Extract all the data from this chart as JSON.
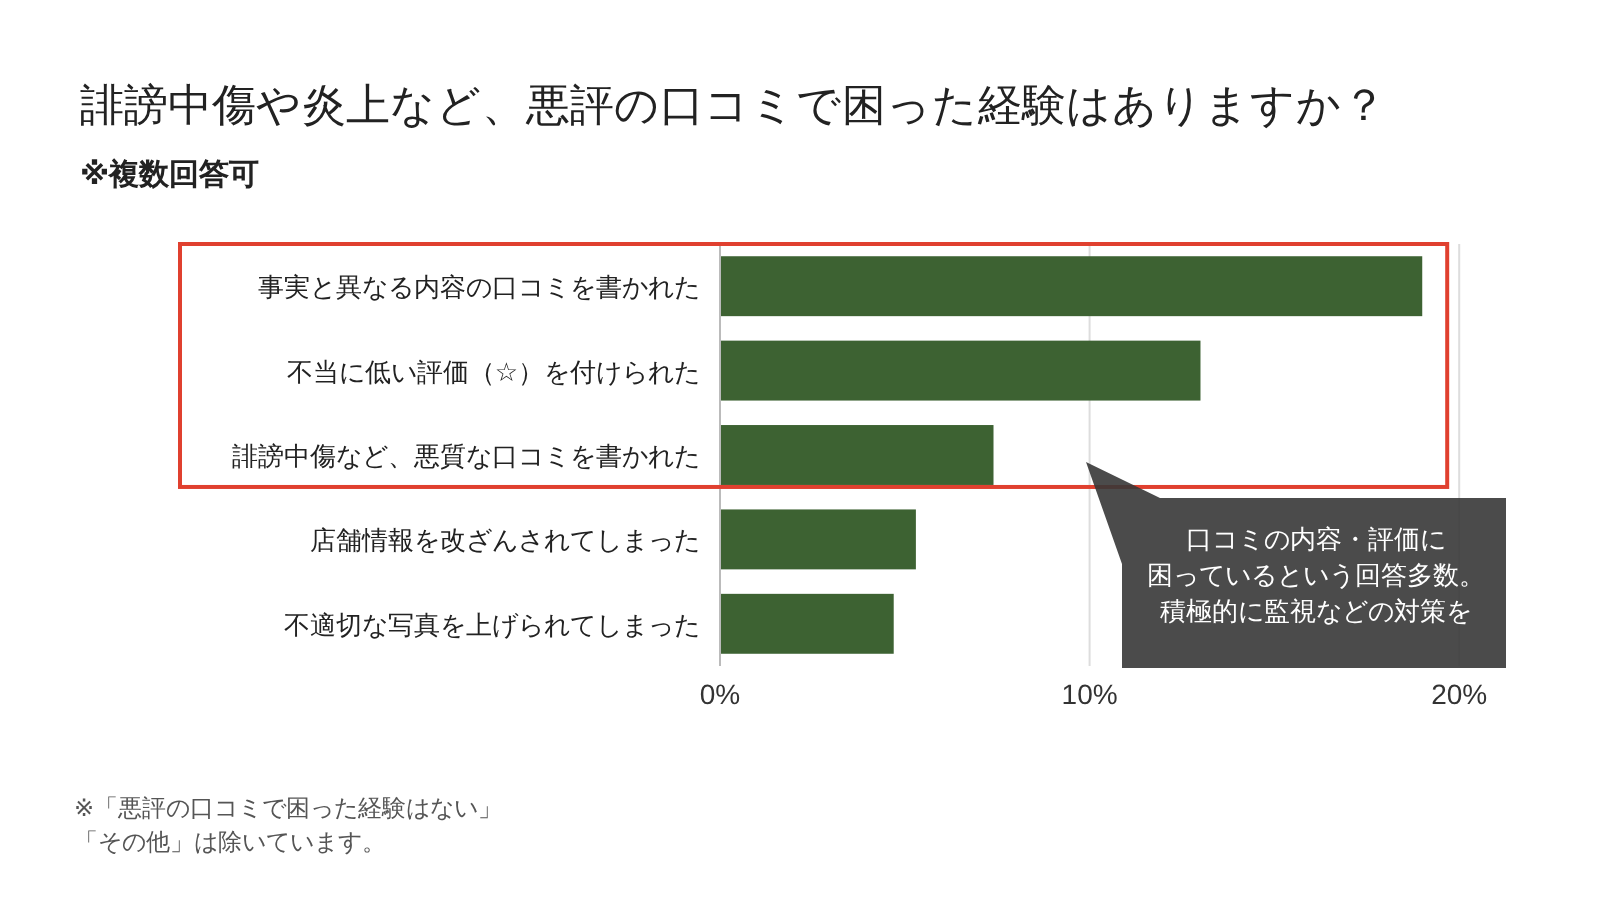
{
  "chart_data": {
    "type": "bar",
    "orientation": "horizontal",
    "title": "誹謗中傷や炎上など、悪評の口コミで困った経験はありますか？",
    "subtitle": "※複数回答可",
    "categories": [
      "事実と異なる内容の口コミを書かれた",
      "不当に低い評価（☆）を付けられた",
      "誹謗中傷など、悪質な口コミを書かれた",
      "店舗情報を改ざんされてしまった",
      "不適切な写真を上げられてしまった"
    ],
    "values": [
      19.0,
      13.0,
      7.4,
      5.3,
      4.7
    ],
    "color": "#3d6232",
    "xlim": [
      0,
      20
    ],
    "xticks": [
      {
        "value": 0,
        "label": "0%"
      },
      {
        "value": 10,
        "label": "10%"
      },
      {
        "value": 20,
        "label": "20%"
      }
    ],
    "grid": "x",
    "annotations": [
      "口コミの内容・評価に困っているという回答多数。積極的に監視などの対策を",
      "※「悪評の口コミで困った経験はない」「その他」は除いています。"
    ]
  }
}
